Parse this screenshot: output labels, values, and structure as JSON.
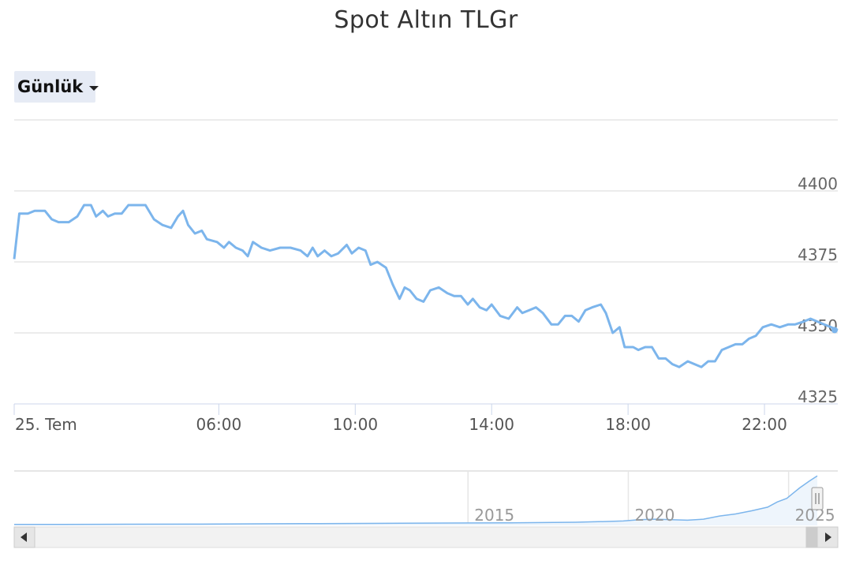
{
  "title": "Spot Altın TLGr",
  "range_selector": {
    "selected": "Günlük"
  },
  "chart_data": {
    "type": "line",
    "title": "Spot Altın TLGr",
    "x_unit": "hour-of-day",
    "x_start_label": "25. Tem",
    "x_ticks": [
      {
        "label": "25. Tem",
        "value": 0
      },
      {
        "label": "06:00",
        "value": 6
      },
      {
        "label": "10:00",
        "value": 10
      },
      {
        "label": "14:00",
        "value": 14
      },
      {
        "label": "18:00",
        "value": 18
      },
      {
        "label": "22:00",
        "value": 22
      }
    ],
    "y_ticks": [
      4325,
      4350,
      4375,
      4400
    ],
    "ylim": [
      4325,
      4425
    ],
    "grid": true,
    "series": [
      {
        "color": "#7cb5ec",
        "points": [
          [
            0.0,
            4376
          ],
          [
            0.15,
            4392
          ],
          [
            0.4,
            4392
          ],
          [
            0.6,
            4393
          ],
          [
            0.9,
            4393
          ],
          [
            1.1,
            4390
          ],
          [
            1.3,
            4389
          ],
          [
            1.6,
            4389
          ],
          [
            1.85,
            4391
          ],
          [
            2.05,
            4395
          ],
          [
            2.25,
            4395
          ],
          [
            2.4,
            4391
          ],
          [
            2.6,
            4393
          ],
          [
            2.75,
            4391
          ],
          [
            2.95,
            4392
          ],
          [
            3.15,
            4392
          ],
          [
            3.35,
            4395
          ],
          [
            3.6,
            4395
          ],
          [
            3.85,
            4395
          ],
          [
            4.1,
            4390
          ],
          [
            4.35,
            4388
          ],
          [
            4.6,
            4387
          ],
          [
            4.8,
            4391
          ],
          [
            4.95,
            4393
          ],
          [
            5.1,
            4388
          ],
          [
            5.3,
            4385
          ],
          [
            5.5,
            4386
          ],
          [
            5.65,
            4383
          ],
          [
            5.95,
            4382
          ],
          [
            6.15,
            4380
          ],
          [
            6.3,
            4382
          ],
          [
            6.5,
            4380
          ],
          [
            6.7,
            4379
          ],
          [
            6.85,
            4377
          ],
          [
            7.0,
            4382
          ],
          [
            7.25,
            4380
          ],
          [
            7.5,
            4379
          ],
          [
            7.8,
            4380
          ],
          [
            8.1,
            4380
          ],
          [
            8.4,
            4379
          ],
          [
            8.6,
            4377
          ],
          [
            8.75,
            4380
          ],
          [
            8.9,
            4377
          ],
          [
            9.1,
            4379
          ],
          [
            9.3,
            4377
          ],
          [
            9.5,
            4378
          ],
          [
            9.75,
            4381
          ],
          [
            9.9,
            4378
          ],
          [
            10.1,
            4380
          ],
          [
            10.3,
            4379
          ],
          [
            10.45,
            4374
          ],
          [
            10.65,
            4375
          ],
          [
            10.9,
            4373
          ],
          [
            11.1,
            4367
          ],
          [
            11.3,
            4362
          ],
          [
            11.45,
            4366
          ],
          [
            11.6,
            4365
          ],
          [
            11.8,
            4362
          ],
          [
            12.0,
            4361
          ],
          [
            12.2,
            4365
          ],
          [
            12.45,
            4366
          ],
          [
            12.7,
            4364
          ],
          [
            12.9,
            4363
          ],
          [
            13.1,
            4363
          ],
          [
            13.3,
            4360
          ],
          [
            13.45,
            4362
          ],
          [
            13.65,
            4359
          ],
          [
            13.85,
            4358
          ],
          [
            14.0,
            4360
          ],
          [
            14.25,
            4356
          ],
          [
            14.5,
            4355
          ],
          [
            14.75,
            4359
          ],
          [
            14.9,
            4357
          ],
          [
            15.1,
            4358
          ],
          [
            15.3,
            4359
          ],
          [
            15.5,
            4357
          ],
          [
            15.75,
            4353
          ],
          [
            15.95,
            4353
          ],
          [
            16.15,
            4356
          ],
          [
            16.35,
            4356
          ],
          [
            16.55,
            4354
          ],
          [
            16.75,
            4358
          ],
          [
            16.95,
            4359
          ],
          [
            17.2,
            4360
          ],
          [
            17.35,
            4357
          ],
          [
            17.55,
            4350
          ],
          [
            17.75,
            4352
          ],
          [
            17.9,
            4345
          ],
          [
            18.15,
            4345
          ],
          [
            18.3,
            4344
          ],
          [
            18.5,
            4345
          ],
          [
            18.7,
            4345
          ],
          [
            18.9,
            4341
          ],
          [
            19.1,
            4341
          ],
          [
            19.3,
            4339
          ],
          [
            19.5,
            4338
          ],
          [
            19.75,
            4340
          ],
          [
            19.95,
            4339
          ],
          [
            20.15,
            4338
          ],
          [
            20.35,
            4340
          ],
          [
            20.55,
            4340
          ],
          [
            20.75,
            4344
          ],
          [
            20.95,
            4345
          ],
          [
            21.15,
            4346
          ],
          [
            21.35,
            4346
          ],
          [
            21.55,
            4348
          ],
          [
            21.75,
            4349
          ],
          [
            21.95,
            4352
          ],
          [
            22.2,
            4353
          ],
          [
            22.45,
            4352
          ],
          [
            22.7,
            4353
          ],
          [
            22.9,
            4353
          ],
          [
            23.15,
            4354
          ],
          [
            23.35,
            4355
          ],
          [
            23.55,
            4354
          ],
          [
            23.75,
            4353
          ],
          [
            23.95,
            4352
          ],
          [
            24.15,
            4351
          ]
        ]
      }
    ],
    "navigator": {
      "labels": [
        {
          "label": "2015",
          "year": 2015
        },
        {
          "label": "2020",
          "year": 2020
        },
        {
          "label": "2025",
          "year": 2025
        }
      ],
      "points": [
        [
          2000.5,
          0.02
        ],
        [
          2002,
          0.02
        ],
        [
          2004,
          0.022
        ],
        [
          2006,
          0.025
        ],
        [
          2008,
          0.03
        ],
        [
          2010,
          0.035
        ],
        [
          2012,
          0.04
        ],
        [
          2014,
          0.045
        ],
        [
          2016,
          0.05
        ],
        [
          2017,
          0.055
        ],
        [
          2018,
          0.06
        ],
        [
          2019,
          0.075
        ],
        [
          2019.5,
          0.085
        ],
        [
          2020,
          0.11
        ],
        [
          2020.5,
          0.12
        ],
        [
          2021,
          0.11
        ],
        [
          2021.5,
          0.1
        ],
        [
          2022,
          0.12
        ],
        [
          2022.5,
          0.18
        ],
        [
          2023,
          0.22
        ],
        [
          2023.5,
          0.28
        ],
        [
          2024,
          0.35
        ],
        [
          2024.3,
          0.45
        ],
        [
          2024.6,
          0.52
        ],
        [
          2024.8,
          0.62
        ],
        [
          2025,
          0.72
        ],
        [
          2025.3,
          0.85
        ],
        [
          2025.55,
          0.95
        ]
      ]
    }
  }
}
